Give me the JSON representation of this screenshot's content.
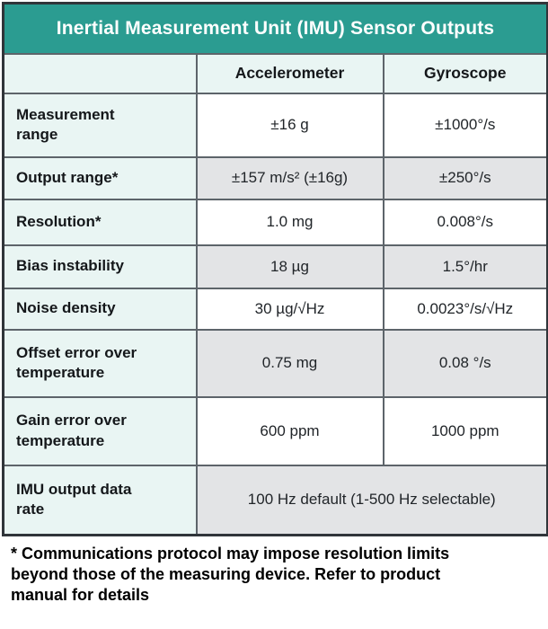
{
  "chart_data": {
    "type": "table",
    "title": "Inertial Measurement Unit (IMU) Sensor Outputs",
    "columns": [
      "",
      "Accelerometer",
      "Gyroscope"
    ],
    "rows": [
      [
        "Measurement range",
        "±16 g",
        "±1000°/s"
      ],
      [
        "Output range*",
        "±157 m/s² (±16g)",
        "±250°/s"
      ],
      [
        "Resolution*",
        "1.0 mg",
        "0.008°/s"
      ],
      [
        "Bias instability",
        "18 µg",
        "1.5°/hr"
      ],
      [
        "Noise density",
        "30 µg/√Hz",
        "0.0023°/s/√Hz"
      ],
      [
        "Offset error over temperature",
        "0.75 mg",
        "0.08 °/s"
      ],
      [
        "Gain error over temperature",
        "600 ppm",
        "1000 ppm"
      ],
      [
        "IMU output data rate",
        "100 Hz default (1-500 Hz selectable)"
      ]
    ],
    "footnote": "* Communications protocol may impose resolution limits beyond those of the measuring device. Refer to product manual for details",
    "layout_hints": {
      "header_fill": "teal",
      "label_column_fill": "light-teal",
      "data_rows_alternate": [
        "white",
        "gray"
      ],
      "last_row_merged_across_data_columns": true
    }
  },
  "colors": {
    "header_teal": "#2b9c91",
    "label_tint": "#e9f5f3",
    "alt_row_gray": "#e3e4e6",
    "title_text": "#ffffff",
    "inner_border": "#5d646a",
    "outer_border": "#30353a"
  }
}
